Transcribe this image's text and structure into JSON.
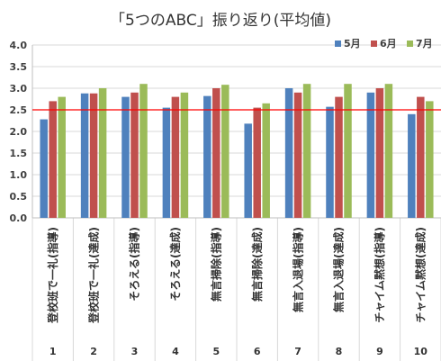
{
  "chart_data": {
    "type": "bar",
    "title": "「5つのABC」振り返り(平均値)",
    "categories": [
      "登校班で一礼(指導)",
      "登校班で一礼(達成)",
      "そろえる(指導)",
      "そろえる(達成)",
      "無言掃除(指導)",
      "無言掃除(達成)",
      "無言入退場(指導)",
      "無言入退場(達成)",
      "チャイム黙想(指導)",
      "チャイム黙想(達成)"
    ],
    "category_numbers": [
      "1",
      "2",
      "3",
      "4",
      "5",
      "6",
      "7",
      "8",
      "9",
      "10"
    ],
    "series": [
      {
        "name": "5月",
        "color": "#4F81BD",
        "values": [
          2.28,
          2.88,
          2.8,
          2.55,
          2.82,
          2.18,
          3.0,
          2.57,
          2.9,
          2.4
        ]
      },
      {
        "name": "6月",
        "color": "#C0504D",
        "values": [
          2.7,
          2.88,
          2.9,
          2.8,
          3.0,
          2.55,
          2.9,
          2.8,
          3.0,
          2.8
        ]
      },
      {
        "name": "7月",
        "color": "#9BBB59",
        "values": [
          2.8,
          3.0,
          3.1,
          2.9,
          3.08,
          2.65,
          3.1,
          3.1,
          3.1,
          2.7
        ]
      }
    ],
    "ylim": [
      0,
      4.0
    ],
    "yticks": [
      "0.0",
      "0.5",
      "1.0",
      "1.5",
      "2.0",
      "2.5",
      "3.0",
      "3.5",
      "4.0"
    ],
    "reference_line": {
      "value": 2.5,
      "color": "#FF0000"
    },
    "grid": true,
    "legend_position": "top-right"
  }
}
